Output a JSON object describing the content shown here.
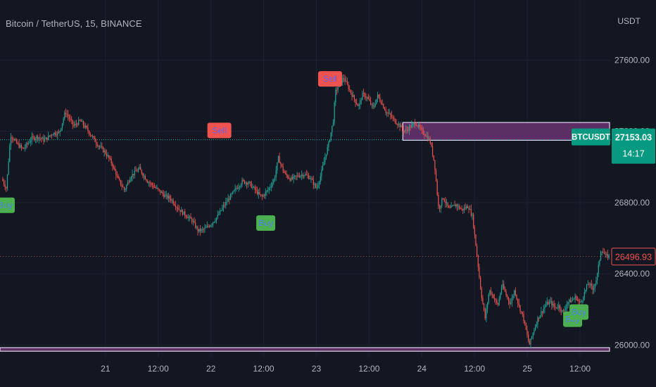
{
  "header": {
    "title": "Bitcoin / TetherUS, 15, BINANCE",
    "currency": "USDT"
  },
  "price_tag": {
    "symbol": "BTCUSDT",
    "price": "27153.03",
    "countdown": "14:17"
  },
  "last_price_tag": {
    "price": "26496.93"
  },
  "colors": {
    "background": "#131722",
    "grid": "#1e2230",
    "up": "#26a69a",
    "down": "#ef5350",
    "zone": "#5b2f63",
    "zone_border": "#e0d8ef",
    "buy_label": "#4caf50",
    "buy_text": "#4f7ff0",
    "sell_label": "#ef5350",
    "sell_text": "#6a5ff0",
    "tag_bg": "#089981"
  },
  "chart_data": {
    "type": "candlestick",
    "ylim": [
      25930,
      27780
    ],
    "y_ticks": [
      27600,
      27200,
      26800,
      26400,
      26000
    ],
    "y_tick_labels": [
      "27600.00",
      "27200.00",
      "26800.00",
      "26400.00",
      "26000.00"
    ],
    "x_ticks": [
      {
        "label": "21",
        "t": 1.0
      },
      {
        "label": "12:00",
        "t": 1.5
      },
      {
        "label": "22",
        "t": 2.0
      },
      {
        "label": "12:00",
        "t": 2.5
      },
      {
        "label": "23",
        "t": 3.0
      },
      {
        "label": "12:00",
        "t": 3.5
      },
      {
        "label": "24",
        "t": 4.0
      },
      {
        "label": "12:00",
        "t": 4.5
      },
      {
        "label": "25",
        "t": 5.0
      },
      {
        "label": "12:00",
        "t": 5.5
      }
    ],
    "t_range": [
      0.02,
      5.78
    ],
    "price_path": [
      [
        0.02,
        26930
      ],
      [
        0.06,
        26880
      ],
      [
        0.1,
        27180
      ],
      [
        0.16,
        27130
      ],
      [
        0.22,
        27100
      ],
      [
        0.3,
        27160
      ],
      [
        0.36,
        27170
      ],
      [
        0.42,
        27150
      ],
      [
        0.5,
        27190
      ],
      [
        0.56,
        27190
      ],
      [
        0.62,
        27310
      ],
      [
        0.7,
        27230
      ],
      [
        0.76,
        27260
      ],
      [
        0.84,
        27200
      ],
      [
        0.92,
        27130
      ],
      [
        1.0,
        27080
      ],
      [
        1.06,
        27020
      ],
      [
        1.12,
        26930
      ],
      [
        1.18,
        26870
      ],
      [
        1.24,
        26950
      ],
      [
        1.32,
        26990
      ],
      [
        1.4,
        26920
      ],
      [
        1.48,
        26880
      ],
      [
        1.56,
        26840
      ],
      [
        1.62,
        26820
      ],
      [
        1.7,
        26760
      ],
      [
        1.76,
        26730
      ],
      [
        1.82,
        26700
      ],
      [
        1.88,
        26640
      ],
      [
        1.94,
        26650
      ],
      [
        2.0,
        26680
      ],
      [
        2.06,
        26720
      ],
      [
        2.12,
        26780
      ],
      [
        2.18,
        26830
      ],
      [
        2.24,
        26880
      ],
      [
        2.3,
        26920
      ],
      [
        2.36,
        26910
      ],
      [
        2.42,
        26870
      ],
      [
        2.48,
        26830
      ],
      [
        2.54,
        26870
      ],
      [
        2.6,
        26930
      ],
      [
        2.64,
        27050
      ],
      [
        2.7,
        26960
      ],
      [
        2.76,
        26930
      ],
      [
        2.82,
        26950
      ],
      [
        2.88,
        26960
      ],
      [
        2.94,
        26940
      ],
      [
        3.0,
        26880
      ],
      [
        3.04,
        26950
      ],
      [
        3.08,
        27050
      ],
      [
        3.12,
        27140
      ],
      [
        3.16,
        27260
      ],
      [
        3.18,
        27420
      ],
      [
        3.22,
        27470
      ],
      [
        3.26,
        27500
      ],
      [
        3.3,
        27450
      ],
      [
        3.36,
        27380
      ],
      [
        3.4,
        27340
      ],
      [
        3.44,
        27410
      ],
      [
        3.48,
        27390
      ],
      [
        3.54,
        27330
      ],
      [
        3.58,
        27400
      ],
      [
        3.62,
        27360
      ],
      [
        3.66,
        27310
      ],
      [
        3.7,
        27290
      ],
      [
        3.74,
        27260
      ],
      [
        3.78,
        27240
      ],
      [
        3.84,
        27200
      ],
      [
        3.88,
        27220
      ],
      [
        3.94,
        27250
      ],
      [
        4.0,
        27200
      ],
      [
        4.04,
        27180
      ],
      [
        4.08,
        27140
      ],
      [
        4.12,
        27020
      ],
      [
        4.16,
        26760
      ],
      [
        4.2,
        26830
      ],
      [
        4.26,
        26760
      ],
      [
        4.32,
        26790
      ],
      [
        4.38,
        26760
      ],
      [
        4.44,
        26780
      ],
      [
        4.48,
        26720
      ],
      [
        4.52,
        26520
      ],
      [
        4.56,
        26300
      ],
      [
        4.6,
        26150
      ],
      [
        4.64,
        26310
      ],
      [
        4.68,
        26270
      ],
      [
        4.72,
        26220
      ],
      [
        4.76,
        26340
      ],
      [
        4.8,
        26280
      ],
      [
        4.84,
        26230
      ],
      [
        4.88,
        26310
      ],
      [
        4.92,
        26220
      ],
      [
        4.96,
        26160
      ],
      [
        5.0,
        26050
      ],
      [
        5.02,
        26000
      ],
      [
        5.06,
        26080
      ],
      [
        5.1,
        26150
      ],
      [
        5.14,
        26190
      ],
      [
        5.18,
        26230
      ],
      [
        5.22,
        26240
      ],
      [
        5.26,
        26210
      ],
      [
        5.3,
        26220
      ],
      [
        5.34,
        26180
      ],
      [
        5.38,
        26240
      ],
      [
        5.42,
        26250
      ],
      [
        5.46,
        26270
      ],
      [
        5.5,
        26230
      ],
      [
        5.54,
        26290
      ],
      [
        5.58,
        26350
      ],
      [
        5.62,
        26310
      ],
      [
        5.66,
        26380
      ],
      [
        5.7,
        26540
      ],
      [
        5.74,
        26500
      ],
      [
        5.78,
        26497
      ]
    ],
    "zones": [
      {
        "t0": 3.82,
        "t1": 5.78,
        "price_low": 27150,
        "price_high": 27250
      },
      {
        "t0": 0.0,
        "t1": 5.78,
        "price_low": 25965,
        "price_high": 25985
      }
    ],
    "reference_line": {
      "price": 27153.03
    },
    "signals": [
      {
        "type": "Buy",
        "t": 0.05,
        "price": 26860
      },
      {
        "type": "Sell",
        "t": 2.08,
        "price": 27130
      },
      {
        "type": "Buy",
        "t": 2.52,
        "price": 26760
      },
      {
        "type": "Sell",
        "t": 3.13,
        "price": 27420
      },
      {
        "type": "Buy",
        "t": 5.43,
        "price": 26220
      },
      {
        "type": "Buy",
        "t": 5.49,
        "price": 26260
      }
    ]
  }
}
